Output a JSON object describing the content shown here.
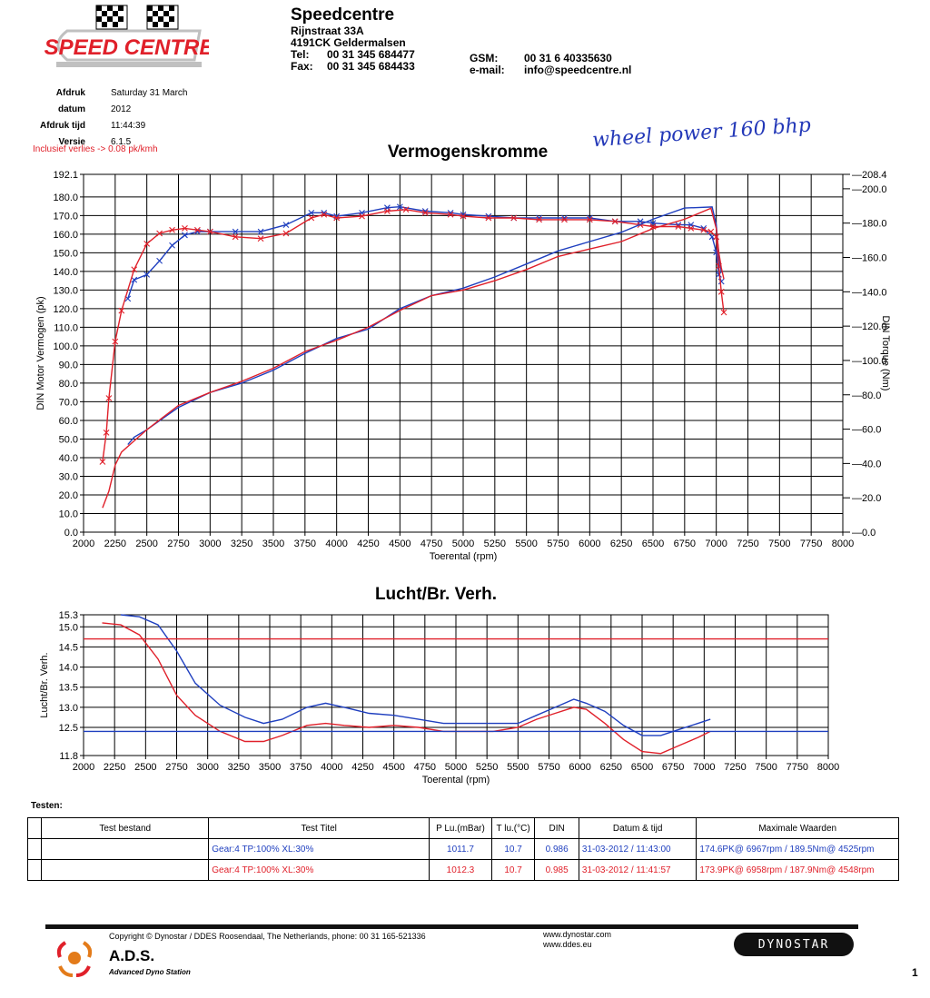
{
  "header": {
    "logo_text": "SPEED CENTRE",
    "company": "Speedcentre",
    "street": "Rijnstraat 33A",
    "city": "4191CK Geldermalsen",
    "tel_label": "Tel:",
    "tel": "00 31 345 684477",
    "fax_label": "Fax:",
    "fax": "00 31 345 684433",
    "gsm_label": "GSM:",
    "gsm": "00 31 6 40335630",
    "email_label": "e-mail:",
    "email": "info@speedcentre.nl"
  },
  "meta": {
    "date_label": "Afdruk datum",
    "date": "Saturday 31 March 2012",
    "time_label": "Afdruk tijd",
    "time": "11:44:39",
    "version_label": "Versie",
    "version": "6.1.5"
  },
  "note": "Inclusief verlies -> 0.08 pk/kmh",
  "handwritten": "wheel power 160 bhp",
  "colors": {
    "blue": "#1f3fbf",
    "red": "#e0202a",
    "grid": "#000000"
  },
  "chart_data": [
    {
      "type": "line",
      "title": "Vermogenskromme",
      "xlabel": "Toerental (rpm)",
      "ylabel": "DIN Motor Vermogen (pk)",
      "y2label": "DIN Torque (Nm)",
      "xlim": [
        2000,
        8000
      ],
      "ylim": [
        0,
        192.1
      ],
      "y2lim": [
        0,
        208.4
      ],
      "xticks": [
        "2000",
        "2250",
        "2500",
        "2750",
        "3000",
        "3250",
        "3500",
        "3750",
        "4000",
        "4250",
        "4500",
        "4750",
        "5000",
        "5250",
        "5500",
        "5750",
        "6000",
        "6250",
        "6500",
        "6750",
        "7000",
        "7250",
        "7500",
        "7750",
        "8000"
      ],
      "yticks": [
        "0.0",
        "10.0",
        "20.0",
        "30.0",
        "40.0",
        "50.0",
        "60.0",
        "70.0",
        "80.0",
        "90.0",
        "100.0",
        "110.0",
        "120.0",
        "130.0",
        "140.0",
        "150.0",
        "160.0",
        "170.0",
        "180.0",
        "192.1"
      ],
      "y2ticks": [
        "0.0",
        "20.0",
        "40.0",
        "60.0",
        "80.0",
        "100.0",
        "120.0",
        "140.0",
        "160.0",
        "180.0",
        "200.0",
        "208.4"
      ],
      "grid": true,
      "series": [
        {
          "name": "Gear:4 TP:100% XL:30% (torque)",
          "color": "#1f3fbf",
          "axis": "y2",
          "marker": "x",
          "x": [
            2350,
            2400,
            2500,
            2600,
            2700,
            2800,
            2900,
            3000,
            3200,
            3400,
            3600,
            3800,
            3900,
            4000,
            4200,
            4400,
            4500,
            4700,
            4900,
            5000,
            5200,
            5400,
            5600,
            5800,
            6000,
            6200,
            6400,
            6500,
            6700,
            6800,
            6900,
            6967,
            7000,
            7020,
            7040
          ],
          "y": [
            136,
            147,
            150,
            158,
            167,
            173,
            175,
            175,
            175,
            175,
            179,
            186,
            186,
            184,
            186,
            189,
            189.5,
            187,
            186,
            185,
            184,
            183,
            183,
            183,
            183,
            181,
            181,
            180,
            179,
            179,
            177,
            172,
            163,
            150,
            146
          ]
        },
        {
          "name": "Gear:4 TP:100% XL:30% (torque)",
          "color": "#e0202a",
          "axis": "y2",
          "marker": "x",
          "x": [
            2150,
            2180,
            2200,
            2250,
            2300,
            2400,
            2500,
            2600,
            2700,
            2800,
            2900,
            3000,
            3200,
            3400,
            3600,
            3800,
            3900,
            4000,
            4200,
            4400,
            4548,
            4700,
            4900,
            5000,
            5200,
            5400,
            5600,
            5800,
            6000,
            6200,
            6400,
            6500,
            6700,
            6800,
            6900,
            6958,
            7000,
            7020,
            7040,
            7060
          ],
          "y": [
            41,
            58,
            78,
            111,
            129,
            153,
            168,
            174,
            176,
            177,
            176,
            175,
            172,
            171,
            174,
            183,
            185,
            183,
            184,
            187,
            187.9,
            186,
            185,
            184,
            183,
            183,
            182,
            182,
            182,
            181,
            179,
            178,
            178,
            177,
            176,
            175,
            172,
            155,
            140,
            128
          ]
        },
        {
          "name": "Gear:4 TP:100% XL:30%",
          "color": "#1f3fbf",
          "axis": "y",
          "x": [
            2350,
            2400,
            2500,
            2750,
            3000,
            3250,
            3500,
            3750,
            4000,
            4250,
            4500,
            4750,
            5000,
            5250,
            5500,
            5750,
            6000,
            6250,
            6500,
            6750,
            6967,
            7000,
            7020,
            7040
          ],
          "y": [
            47,
            51,
            55,
            67,
            75,
            80,
            87,
            96,
            104,
            109,
            120,
            127,
            131,
            137,
            144,
            151,
            156,
            161,
            168,
            174,
            174.6,
            165,
            148,
            140
          ]
        },
        {
          "name": "Gear:4 TP:100% XL:30%",
          "color": "#e0202a",
          "axis": "y",
          "x": [
            2150,
            2200,
            2250,
            2300,
            2400,
            2500,
            2750,
            3000,
            3250,
            3500,
            3750,
            4000,
            4250,
            4500,
            4750,
            5000,
            5250,
            5500,
            5750,
            6000,
            6250,
            6500,
            6750,
            6958,
            7000,
            7020,
            7040,
            7060
          ],
          "y": [
            13,
            22,
            36,
            43,
            49,
            55,
            68,
            75,
            81,
            88,
            97,
            103,
            110,
            119,
            127,
            130,
            135,
            141,
            148,
            152,
            156,
            163,
            168,
            173.9,
            163,
            150,
            142,
            136
          ]
        }
      ]
    },
    {
      "type": "line",
      "title": "Lucht/Br. Verh.",
      "xlabel": "Toerental (rpm)",
      "ylabel": "Lucht/Br. Verh.",
      "xlim": [
        2000,
        8000
      ],
      "ylim": [
        11.8,
        15.3
      ],
      "xticks": [
        "2000",
        "2250",
        "2500",
        "2750",
        "3000",
        "3250",
        "3500",
        "3750",
        "4000",
        "4250",
        "4500",
        "4750",
        "5000",
        "5250",
        "5500",
        "5750",
        "6000",
        "6250",
        "6500",
        "6750",
        "7000",
        "7250",
        "7500",
        "7750",
        "8000"
      ],
      "yticks": [
        "11.8",
        "12.5",
        "13.0",
        "13.5",
        "14.0",
        "14.5",
        "15.0",
        "15.3"
      ],
      "grid": true,
      "series": [
        {
          "name": "Gear:4 TP:100% XL:30%",
          "color": "#1f3fbf",
          "x": [
            2300,
            2450,
            2600,
            2750,
            2900,
            3100,
            3300,
            3450,
            3600,
            3800,
            3950,
            4100,
            4300,
            4500,
            4700,
            4900,
            5100,
            5300,
            5500,
            5650,
            5800,
            5950,
            6050,
            6200,
            6350,
            6500,
            6650,
            6800,
            6950,
            7050
          ],
          "y": [
            15.3,
            15.25,
            15.05,
            14.4,
            13.6,
            13.05,
            12.75,
            12.6,
            12.7,
            13.0,
            13.1,
            13.0,
            12.85,
            12.8,
            12.7,
            12.6,
            12.6,
            12.6,
            12.6,
            12.8,
            13.0,
            13.2,
            13.1,
            12.9,
            12.55,
            12.3,
            12.3,
            12.45,
            12.6,
            12.7
          ]
        },
        {
          "name": "Gear:4 TP:100% XL:30%",
          "color": "#e0202a",
          "x": [
            2150,
            2300,
            2450,
            2600,
            2750,
            2900,
            3100,
            3300,
            3450,
            3600,
            3800,
            3950,
            4100,
            4300,
            4500,
            4700,
            4900,
            5100,
            5300,
            5500,
            5650,
            5800,
            5950,
            6050,
            6200,
            6350,
            6500,
            6650,
            6800,
            6950,
            7050
          ],
          "y": [
            15.1,
            15.05,
            14.8,
            14.2,
            13.3,
            12.8,
            12.4,
            12.15,
            12.15,
            12.3,
            12.55,
            12.6,
            12.55,
            12.5,
            12.55,
            12.5,
            12.4,
            12.4,
            12.4,
            12.5,
            12.7,
            12.85,
            13.0,
            12.95,
            12.6,
            12.2,
            11.9,
            11.85,
            12.05,
            12.25,
            12.4
          ]
        },
        {
          "name": "",
          "color": "#e0202a",
          "x": [
            2000,
            8000
          ],
          "y": [
            14.7,
            14.7
          ]
        },
        {
          "name": "",
          "color": "#1f3fbf",
          "x": [
            2000,
            8000
          ],
          "y": [
            12.4,
            12.4
          ]
        }
      ]
    }
  ],
  "tests": {
    "label": "Testen:",
    "headers": [
      "Test bestand",
      "Test Titel",
      "P Lu.(mBar)",
      "T lu.(°C)",
      "DIN",
      "Datum & tijd",
      "Maximale Waarden"
    ],
    "rows": [
      {
        "color": "#1f3fbf",
        "cells": [
          "",
          "Gear:4 TP:100% XL:30%",
          "1011.7",
          "10.7",
          "0.986",
          "31-03-2012 / 11:43:00",
          "174.6PK@ 6967rpm / 189.5Nm@ 4525rpm"
        ]
      },
      {
        "color": "#e0202a",
        "cells": [
          "",
          "Gear:4 TP:100% XL:30%",
          "1012.3",
          "10.7",
          "0.985",
          "31-03-2012 / 11:41:57",
          "173.9PK@ 6958rpm / 187.9Nm@ 4548rpm"
        ]
      }
    ]
  },
  "footer": {
    "copyright": "Copyright © Dynostar / DDES Roosendaal, The Netherlands, phone: 00 31 165-521336",
    "ads": "A.D.S.",
    "ads_sub": "Advanced Dyno Station",
    "web1": "www.dynostar.com",
    "web2": "www.ddes.eu",
    "brand": "DYNOSTAR",
    "page": "1"
  }
}
